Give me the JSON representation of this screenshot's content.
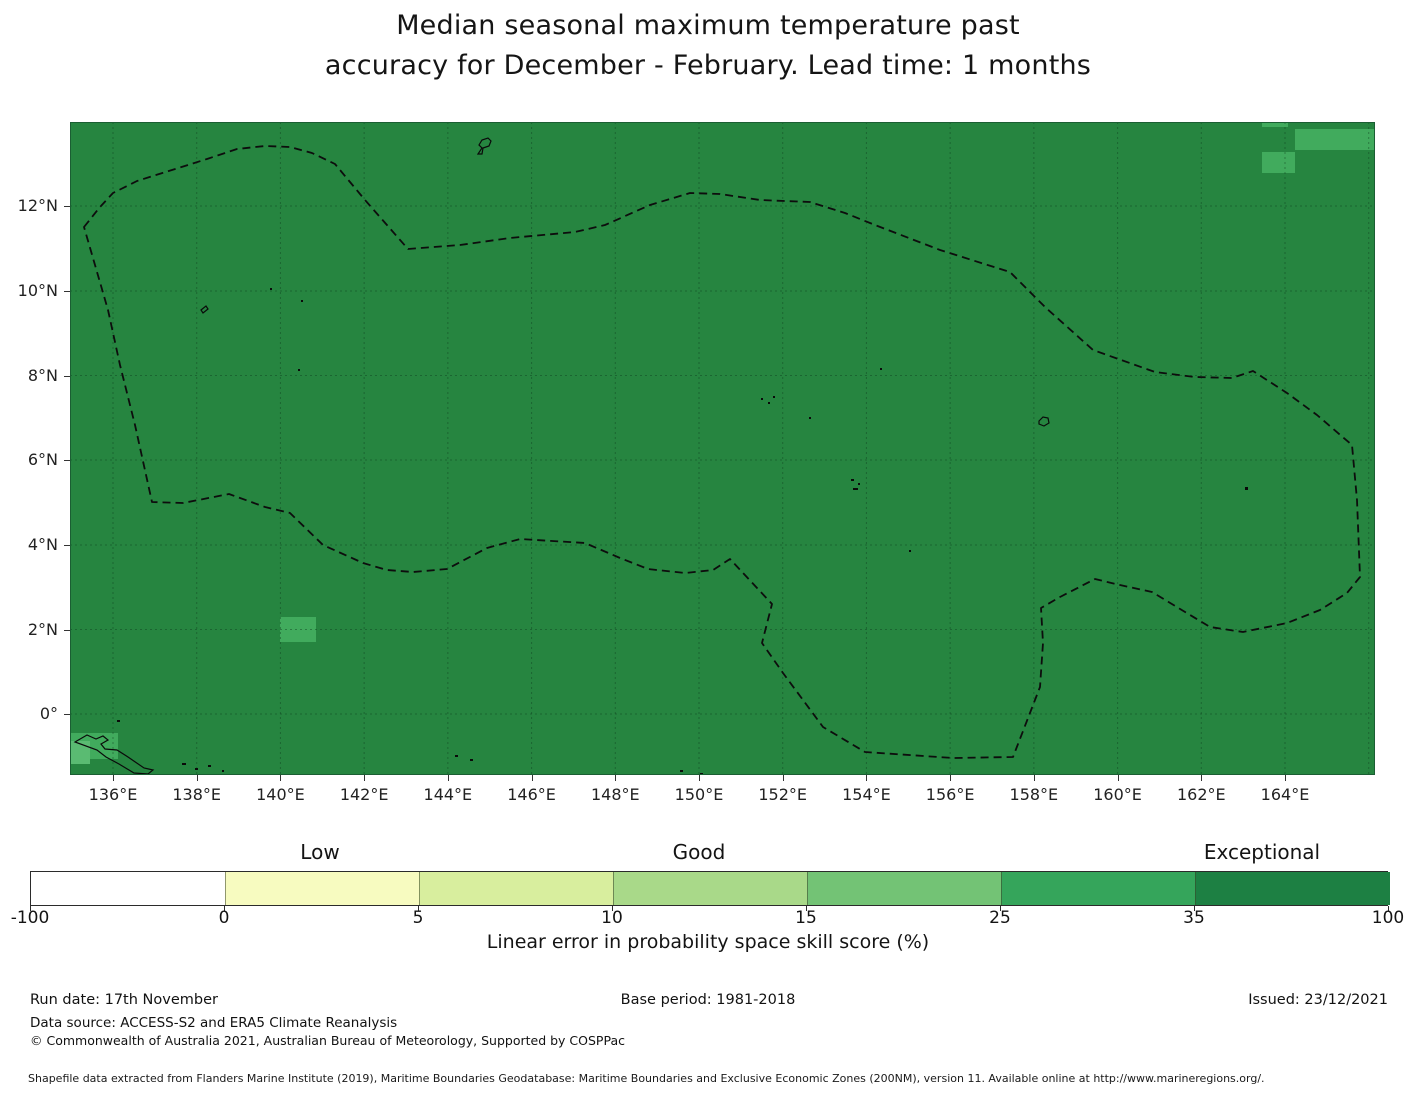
{
  "title": {
    "line1": "Median seasonal maximum temperature past",
    "line2": "accuracy for December - February. Lead time: 1 months"
  },
  "axes": {
    "lat_labels": [
      "12°N",
      "10°N",
      "8°N",
      "6°N",
      "4°N",
      "2°N",
      "0°"
    ],
    "lon_labels": [
      "136°E",
      "138°E",
      "140°E",
      "142°E",
      "144°E",
      "146°E",
      "148°E",
      "150°E",
      "152°E",
      "154°E",
      "156°E",
      "158°E",
      "160°E",
      "162°E",
      "164°E"
    ]
  },
  "colorbar": {
    "category_labels": [
      "Low",
      "Good",
      "Exceptional"
    ],
    "tick_labels": [
      "-100",
      "0",
      "5",
      "10",
      "15",
      "25",
      "35",
      "100"
    ],
    "bin_colors": [
      "#ffffff",
      "#f7fbc0",
      "#d8ee9e",
      "#a9d989",
      "#73c375",
      "#35a55b",
      "#1d8043"
    ],
    "label": "Linear error in probability space skill score (%)"
  },
  "map_colors": {
    "base_green": "#268540",
    "patch_green": "#41ab5d",
    "patch_green_light": "#5abb72",
    "grid_green": "#0f3d20",
    "boundary_black": "#0d0d0d"
  },
  "footer": {
    "run_date": "Run date: 17th November",
    "base_period": "Base period: 1981-2018",
    "issued": "Issued: 23/12/2021",
    "data_source": "Data source: ACCESS-S2 and ERA5 Climate Reanalysis",
    "copyright": "© Commonwealth of Australia 2021, Australian Bureau of Meteorology, Supported by COSPPac",
    "shapefile": "Shapefile data extracted from Flanders Marine Institute (2019), Maritime Boundaries Geodatabase: Maritime Boundaries and Exclusive Economic Zones (200NM), version 11. Available online at http://www.marineregions.org/."
  },
  "chart_data": {
    "type": "heatmap",
    "title": "Median seasonal maximum temperature past accuracy for December - February. Lead time: 1 months",
    "xlabel": "",
    "ylabel": "",
    "x_axis": {
      "tick_labels_deg_east": [
        136,
        138,
        140,
        142,
        144,
        146,
        148,
        150,
        152,
        154,
        156,
        158,
        160,
        162,
        164
      ],
      "range_deg_east": [
        135.0,
        166.2
      ],
      "grid": true
    },
    "y_axis": {
      "tick_labels_deg_north": [
        12,
        10,
        8,
        6,
        4,
        2,
        0
      ],
      "range_deg_north": [
        -1.5,
        14.0
      ],
      "grid": true
    },
    "colorbar": {
      "label": "Linear error in probability space skill score (%)",
      "bin_edges": [
        -100,
        0,
        5,
        10,
        15,
        25,
        35,
        100
      ],
      "bin_colors": [
        "#ffffff",
        "#f7fbc0",
        "#d8ee9e",
        "#a9d989",
        "#73c375",
        "#35a55b",
        "#1d8043"
      ],
      "category_labels": [
        {
          "label": "Low",
          "above_bin": "0-5"
        },
        {
          "label": "Good",
          "above_bin": "10-15"
        },
        {
          "label": "Exceptional",
          "above_bin": "35-100"
        }
      ],
      "legend_position": "bottom"
    },
    "values": {
      "dominant_skill_bin_percent": "35-100",
      "lighter_patch_skill_bin_percent": "25-35",
      "lighter_patches_approx": [
        {
          "lon_e": 140.6,
          "lat_n": 1.9
        },
        {
          "lon_e": 135.2,
          "lat_n": -0.7
        },
        {
          "lon_e": 165.2,
          "lat_n": 13.5
        },
        {
          "lon_e": 163.9,
          "lat_n": 14.0
        },
        {
          "lon_e": 163.6,
          "lat_n": 13.0
        }
      ],
      "overlay": "dashed EEZ maritime boundary outline with small island landmass contours"
    }
  }
}
